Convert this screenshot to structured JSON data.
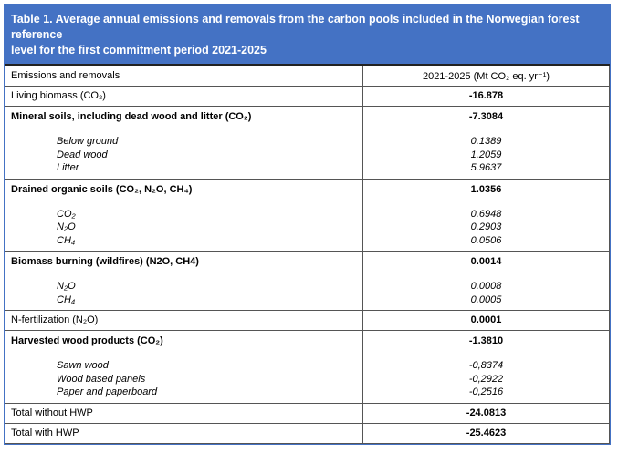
{
  "caption": {
    "line1": "Table 1. Average annual emissions and removals from the carbon pools included in the Norwegian forest reference",
    "line2": "level for the first commitment period 2021-2025"
  },
  "header": {
    "col1": "Emissions and removals",
    "col2": "2021-2025 (Mt CO₂ eq. yr⁻¹)"
  },
  "rows": {
    "living": {
      "label": "Living biomass (CO₂)",
      "value": "-16.878"
    },
    "mineral": {
      "label": "Mineral soils, including dead wood and litter (CO₂)",
      "value": "-7.3084",
      "subs": [
        {
          "label": "Below ground",
          "value": "0.1389"
        },
        {
          "label": "Dead wood",
          "value": "1.2059"
        },
        {
          "label": "Litter",
          "value": "5.9637"
        }
      ]
    },
    "drained": {
      "label": "Drained organic soils (CO₂, N₂O, CH₄)",
      "value": "1.0356",
      "subs": [
        {
          "label": "CO₂",
          "value": "0.6948"
        },
        {
          "label": "N₂O",
          "value": "0.2903"
        },
        {
          "label": "CH₄",
          "value": "0.0506"
        }
      ]
    },
    "burning": {
      "label": "Biomass burning (wildfires) (N2O, CH4)",
      "value": "0.0014",
      "subs": [
        {
          "label": "N₂O",
          "value": "0.0008"
        },
        {
          "label": "CH₄",
          "value": "0.0005"
        }
      ]
    },
    "nfert": {
      "label": "N-fertilization (N₂O)",
      "value": "0.0001"
    },
    "hwp": {
      "label": "Harvested wood products (CO₂)",
      "value": "-1.3810",
      "subs": [
        {
          "label": "Sawn wood",
          "value": "-0,8374"
        },
        {
          "label": "Wood based panels",
          "value": "-0,2922"
        },
        {
          "label": "Paper and paperboard",
          "value": "-0,2516"
        }
      ]
    },
    "total_without": {
      "label": "Total without HWP",
      "value": "-24.0813"
    },
    "total_with": {
      "label": "Total with HWP",
      "value": "-25.4623"
    }
  }
}
